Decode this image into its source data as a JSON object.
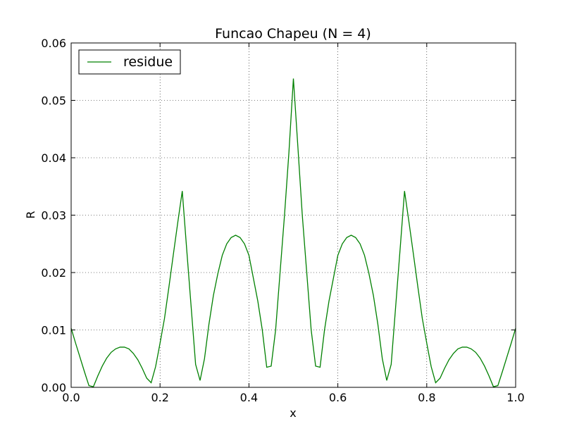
{
  "chart_data": {
    "type": "line",
    "title": "Funcao Chapeu (N = 4)",
    "xlabel": "x",
    "ylabel": "R",
    "xlim": [
      0.0,
      1.0
    ],
    "ylim": [
      0.0,
      0.06
    ],
    "xticks": [
      "0.0",
      "0.2",
      "0.4",
      "0.6",
      "0.8",
      "1.0"
    ],
    "yticks": [
      "0.00",
      "0.01",
      "0.02",
      "0.03",
      "0.04",
      "0.05",
      "0.06"
    ],
    "grid": true,
    "legend_position": "top-left",
    "series": [
      {
        "name": "residue",
        "color": "#008000",
        "x": [
          0.0,
          0.01,
          0.02,
          0.03,
          0.04,
          0.05,
          0.06,
          0.07,
          0.08,
          0.09,
          0.1,
          0.11,
          0.12,
          0.13,
          0.14,
          0.15,
          0.16,
          0.17,
          0.18,
          0.19,
          0.2,
          0.21,
          0.22,
          0.23,
          0.24,
          0.25,
          0.26,
          0.27,
          0.28,
          0.29,
          0.3,
          0.31,
          0.32,
          0.33,
          0.34,
          0.35,
          0.36,
          0.37,
          0.38,
          0.39,
          0.4,
          0.41,
          0.42,
          0.43,
          0.44,
          0.45,
          0.46,
          0.47,
          0.48,
          0.49,
          0.5,
          0.51,
          0.52,
          0.53,
          0.54,
          0.55,
          0.56,
          0.57,
          0.58,
          0.59,
          0.6,
          0.61,
          0.62,
          0.63,
          0.64,
          0.65,
          0.66,
          0.67,
          0.68,
          0.69,
          0.7,
          0.71,
          0.72,
          0.73,
          0.74,
          0.75,
          0.76,
          0.77,
          0.78,
          0.79,
          0.8,
          0.81,
          0.82,
          0.83,
          0.84,
          0.85,
          0.86,
          0.87,
          0.88,
          0.89,
          0.9,
          0.91,
          0.92,
          0.93,
          0.94,
          0.95,
          0.96,
          0.97,
          0.98,
          0.99,
          1.0
        ],
        "values": [
          0.0103,
          0.0077,
          0.0052,
          0.0027,
          0.0003,
          0.0001,
          0.002,
          0.0037,
          0.0051,
          0.0061,
          0.0067,
          0.007,
          0.007,
          0.0067,
          0.0059,
          0.0048,
          0.0033,
          0.0016,
          0.0008,
          0.0036,
          0.0077,
          0.012,
          0.0175,
          0.0232,
          0.0288,
          0.0342,
          0.024,
          0.014,
          0.004,
          0.0012,
          0.005,
          0.011,
          0.016,
          0.0198,
          0.023,
          0.025,
          0.0261,
          0.0265,
          0.0261,
          0.025,
          0.023,
          0.019,
          0.015,
          0.01,
          0.0035,
          0.0037,
          0.01,
          0.02,
          0.03,
          0.041,
          0.0538,
          0.042,
          0.03,
          0.02,
          0.01,
          0.0037,
          0.0035,
          0.01,
          0.015,
          0.019,
          0.023,
          0.025,
          0.0261,
          0.0265,
          0.0261,
          0.025,
          0.023,
          0.0198,
          0.016,
          0.011,
          0.005,
          0.0012,
          0.004,
          0.014,
          0.024,
          0.0342,
          0.0288,
          0.0232,
          0.0175,
          0.012,
          0.0077,
          0.0036,
          0.0008,
          0.0016,
          0.0033,
          0.0048,
          0.0059,
          0.0067,
          0.007,
          0.007,
          0.0067,
          0.0061,
          0.0051,
          0.0037,
          0.002,
          0.0001,
          0.0003,
          0.0027,
          0.0052,
          0.0077,
          0.0103
        ]
      }
    ]
  }
}
